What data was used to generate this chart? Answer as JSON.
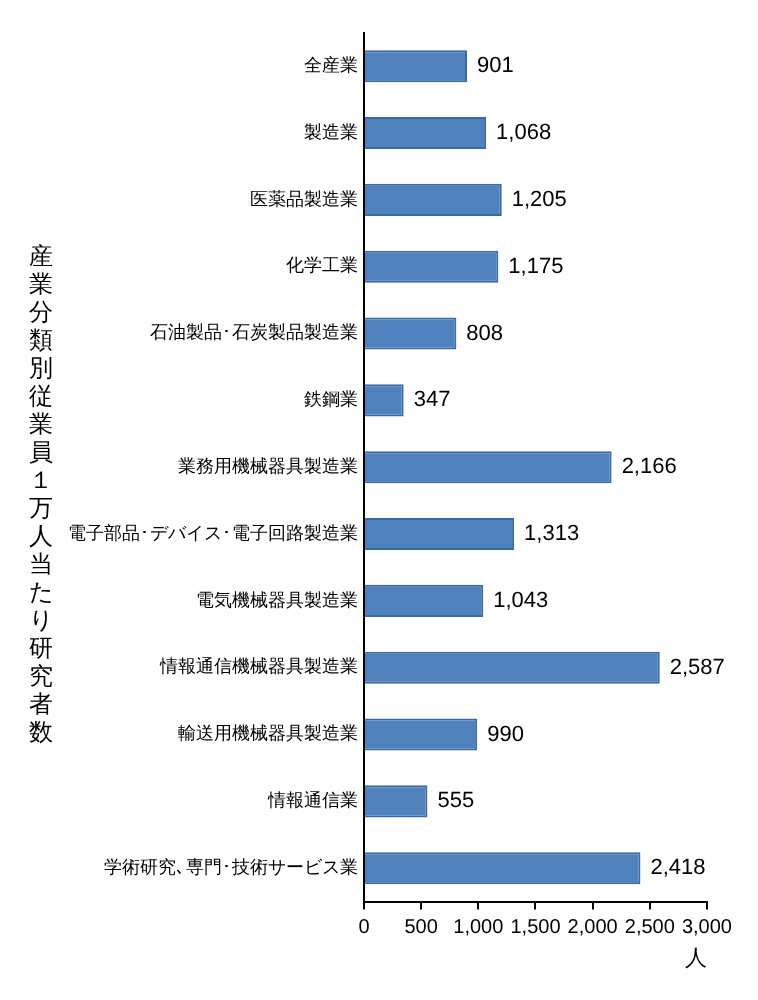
{
  "chart_data": {
    "type": "bar",
    "orientation": "horizontal",
    "ylabel": "産業分類別従業員１万人当たり研究者数",
    "xlabel": "人",
    "categories": [
      "全産業",
      "製造業",
      "医薬品製造業",
      "化学工業",
      "石油製品･石炭製品製造業",
      "鉄鋼業",
      "業務用機械器具製造業",
      "電子部品･デバイス･電子回路製造業",
      "電気機械器具製造業",
      "情報通信機械器具製造業",
      "輸送用機械器具製造業",
      "情報通信業",
      "学術研究､専門･技術サービス業"
    ],
    "values": [
      901,
      1068,
      1205,
      1175,
      808,
      347,
      2166,
      1313,
      1043,
      2587,
      990,
      555,
      2418
    ],
    "value_labels": [
      "901",
      "1,068",
      "1,205",
      "1,175",
      "808",
      "347",
      "2,166",
      "1,313",
      "1,043",
      "2,587",
      "990",
      "555",
      "2,418"
    ],
    "color": "#4f81bd",
    "xlim": [
      0,
      3000
    ],
    "xticks": [
      0,
      500,
      {
        "value": 1000,
        "label": "1,000"
      },
      {
        "value": 1500,
        "label": "1,500"
      },
      {
        "value": 2000,
        "label": "2,000"
      },
      {
        "value": 2500,
        "label": "2,500"
      },
      {
        "value": 3000,
        "label": "3,000"
      }
    ],
    "grid": false,
    "legend": false
  }
}
